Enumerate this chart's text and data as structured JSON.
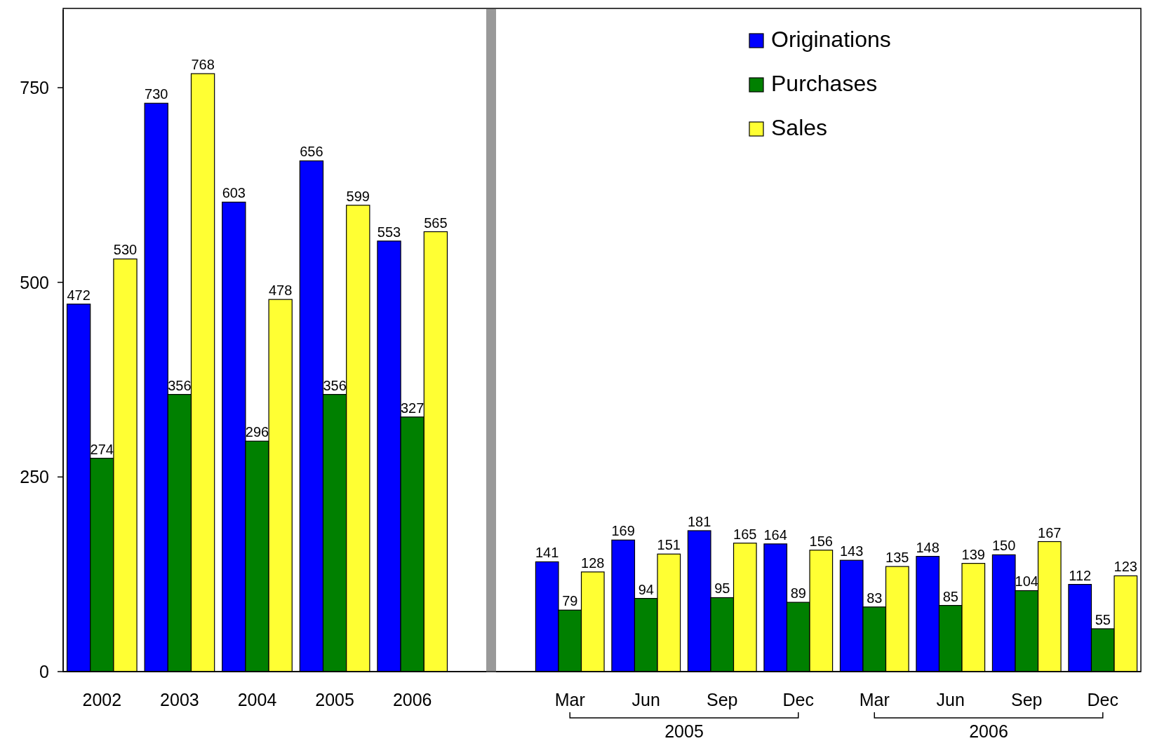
{
  "chart_data": [
    {
      "type": "bar",
      "categories": [
        "2002",
        "2003",
        "2004",
        "2005",
        "2006"
      ],
      "ylim": [
        0,
        850
      ],
      "yticks": [
        0,
        250,
        500,
        750
      ],
      "grid": false,
      "legend": false,
      "data_labels": true,
      "series": [
        {
          "color": "#0000ff",
          "values": [
            472,
            730,
            603,
            656,
            553
          ]
        },
        {
          "color": "#008000",
          "values": [
            274,
            356,
            296,
            356,
            327
          ]
        },
        {
          "color": "#ffff33",
          "values": [
            530,
            768,
            478,
            599,
            565
          ]
        }
      ]
    },
    {
      "type": "bar",
      "categories": [
        "Mar",
        "Jun",
        "Sep",
        "Dec",
        "Mar",
        "Jun",
        "Sep",
        "Dec"
      ],
      "ylim": [
        0,
        850
      ],
      "tick_labels": "x",
      "grid": false,
      "legend": "top",
      "data_labels": true,
      "annotations": [
        "2005",
        "2006"
      ],
      "series": [
        {
          "name": "Originations",
          "color": "#0000ff",
          "values": [
            141,
            169,
            181,
            164,
            143,
            148,
            150,
            112
          ]
        },
        {
          "name": "Purchases",
          "color": "#008000",
          "values": [
            79,
            94,
            95,
            89,
            83,
            85,
            104,
            55
          ]
        },
        {
          "name": "Sales",
          "color": "#ffff33",
          "values": [
            128,
            151,
            165,
            156,
            135,
            139,
            167,
            123
          ]
        }
      ]
    }
  ]
}
